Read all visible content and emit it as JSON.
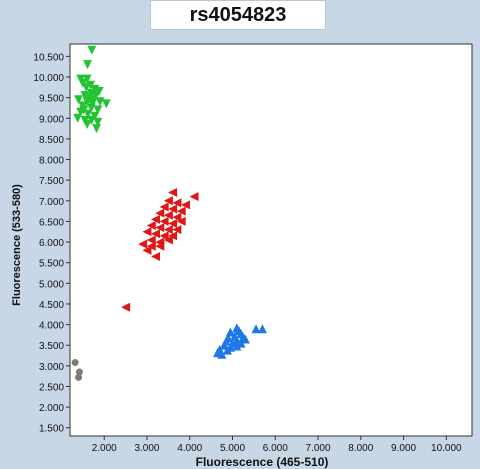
{
  "chart_data": {
    "type": "scatter",
    "title": "rs4054823",
    "xlabel": "Fluorescence (465-510)",
    "ylabel": "Fluorescence (533-580)",
    "xlim": [
      1.2,
      10.6
    ],
    "ylim": [
      1.3,
      10.8
    ],
    "x_ticks": [
      "2.000",
      "3.000",
      "4.000",
      "5.000",
      "6.000",
      "7.000",
      "8.000",
      "9.000",
      "10.000"
    ],
    "y_ticks": [
      "1.500",
      "2.000",
      "2.500",
      "3.000",
      "3.500",
      "4.000",
      "4.500",
      "5.000",
      "5.500",
      "6.000",
      "6.500",
      "7.000",
      "7.500",
      "8.000",
      "8.500",
      "9.000",
      "9.500",
      "10.000",
      "10.500"
    ],
    "grid": false,
    "series": [
      {
        "marker": "triangle-down",
        "color": "#22c432",
        "points": [
          [
            1.71,
            10.65
          ],
          [
            1.61,
            10.3
          ],
          [
            1.45,
            9.95
          ],
          [
            1.6,
            9.95
          ],
          [
            1.5,
            9.85
          ],
          [
            1.58,
            9.75
          ],
          [
            1.68,
            9.8
          ],
          [
            1.78,
            9.7
          ],
          [
            1.88,
            9.65
          ],
          [
            1.7,
            9.6
          ],
          [
            1.55,
            9.55
          ],
          [
            1.65,
            9.5
          ],
          [
            1.8,
            9.55
          ],
          [
            1.4,
            9.45
          ],
          [
            1.6,
            9.4
          ],
          [
            1.75,
            9.45
          ],
          [
            1.9,
            9.4
          ],
          [
            2.05,
            9.35
          ],
          [
            1.5,
            9.3
          ],
          [
            1.7,
            9.25
          ],
          [
            1.85,
            9.2
          ],
          [
            1.45,
            9.15
          ],
          [
            1.62,
            9.1
          ],
          [
            1.78,
            9.05
          ],
          [
            1.38,
            9.0
          ],
          [
            1.55,
            8.95
          ],
          [
            1.7,
            8.95
          ],
          [
            1.85,
            8.9
          ],
          [
            1.6,
            8.85
          ],
          [
            1.82,
            8.75
          ],
          [
            1.52,
            9.2
          ],
          [
            1.72,
            9.35
          ]
        ]
      },
      {
        "marker": "triangle-left",
        "color": "#e21515",
        "points": [
          [
            3.6,
            7.2
          ],
          [
            4.1,
            7.1
          ],
          [
            3.5,
            7.0
          ],
          [
            3.7,
            6.95
          ],
          [
            3.4,
            6.85
          ],
          [
            3.6,
            6.8
          ],
          [
            3.8,
            6.75
          ],
          [
            3.3,
            6.7
          ],
          [
            3.5,
            6.65
          ],
          [
            3.7,
            6.6
          ],
          [
            3.2,
            6.55
          ],
          [
            3.4,
            6.5
          ],
          [
            3.6,
            6.45
          ],
          [
            3.1,
            6.4
          ],
          [
            3.3,
            6.35
          ],
          [
            3.5,
            6.3
          ],
          [
            3.7,
            6.3
          ],
          [
            3.0,
            6.25
          ],
          [
            3.2,
            6.2
          ],
          [
            3.4,
            6.15
          ],
          [
            3.6,
            6.15
          ],
          [
            3.1,
            6.05
          ],
          [
            3.3,
            6.0
          ],
          [
            2.9,
            5.95
          ],
          [
            3.1,
            5.9
          ],
          [
            3.3,
            5.9
          ],
          [
            3.0,
            5.8
          ],
          [
            3.5,
            6.05
          ],
          [
            3.8,
            6.5
          ],
          [
            3.9,
            6.9
          ],
          [
            3.2,
            5.65
          ],
          [
            2.5,
            4.42
          ]
        ]
      },
      {
        "marker": "triangle-up",
        "color": "#1e78e6",
        "points": [
          [
            5.55,
            3.9
          ],
          [
            5.7,
            3.9
          ],
          [
            5.1,
            3.92
          ],
          [
            5.15,
            3.85
          ],
          [
            4.95,
            3.82
          ],
          [
            5.2,
            3.78
          ],
          [
            5.05,
            3.72
          ],
          [
            5.25,
            3.7
          ],
          [
            4.9,
            3.68
          ],
          [
            5.1,
            3.62
          ],
          [
            5.3,
            3.65
          ],
          [
            4.85,
            3.6
          ],
          [
            5.0,
            3.55
          ],
          [
            5.2,
            3.55
          ],
          [
            4.8,
            3.5
          ],
          [
            4.95,
            3.45
          ],
          [
            5.1,
            3.48
          ],
          [
            4.7,
            3.4
          ],
          [
            4.88,
            3.38
          ],
          [
            4.65,
            3.32
          ],
          [
            4.75,
            3.28
          ]
        ]
      },
      {
        "marker": "circle",
        "color": "#7a7a7a",
        "points": [
          [
            1.32,
            3.08
          ],
          [
            1.42,
            2.85
          ],
          [
            1.4,
            2.72
          ]
        ]
      }
    ]
  }
}
